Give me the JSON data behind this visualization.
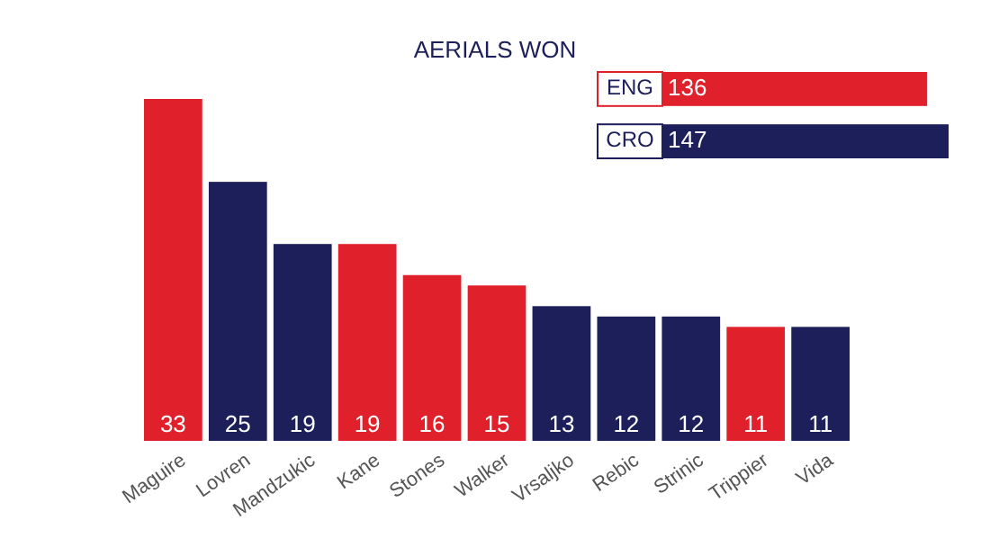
{
  "chart_data": [
    {
      "type": "bar",
      "title": "AERIALS WON",
      "categories": [
        "Maguire",
        "Lovren",
        "Mandzukic",
        "Kane",
        "Stones",
        "Walker",
        "Vrsaljko",
        "Rebic",
        "Strinic",
        "Trippier",
        "Vida"
      ],
      "values": [
        33,
        25,
        19,
        19,
        16,
        15,
        13,
        12,
        12,
        11,
        11
      ],
      "colors": [
        "#e0212b",
        "#1c1f5a",
        "#1c1f5a",
        "#e0212b",
        "#e0212b",
        "#e0212b",
        "#1c1f5a",
        "#1c1f5a",
        "#1c1f5a",
        "#e0212b",
        "#1c1f5a"
      ],
      "data_labels": true,
      "tick_labels": "x"
    },
    {
      "type": "bar",
      "orientation": "horizontal",
      "categories": [
        "ENG",
        "CRO"
      ],
      "values": [
        136,
        147
      ],
      "colors": [
        "#e0212b",
        "#1c1f5a"
      ],
      "data_labels": true,
      "tick_labels": "y"
    }
  ]
}
